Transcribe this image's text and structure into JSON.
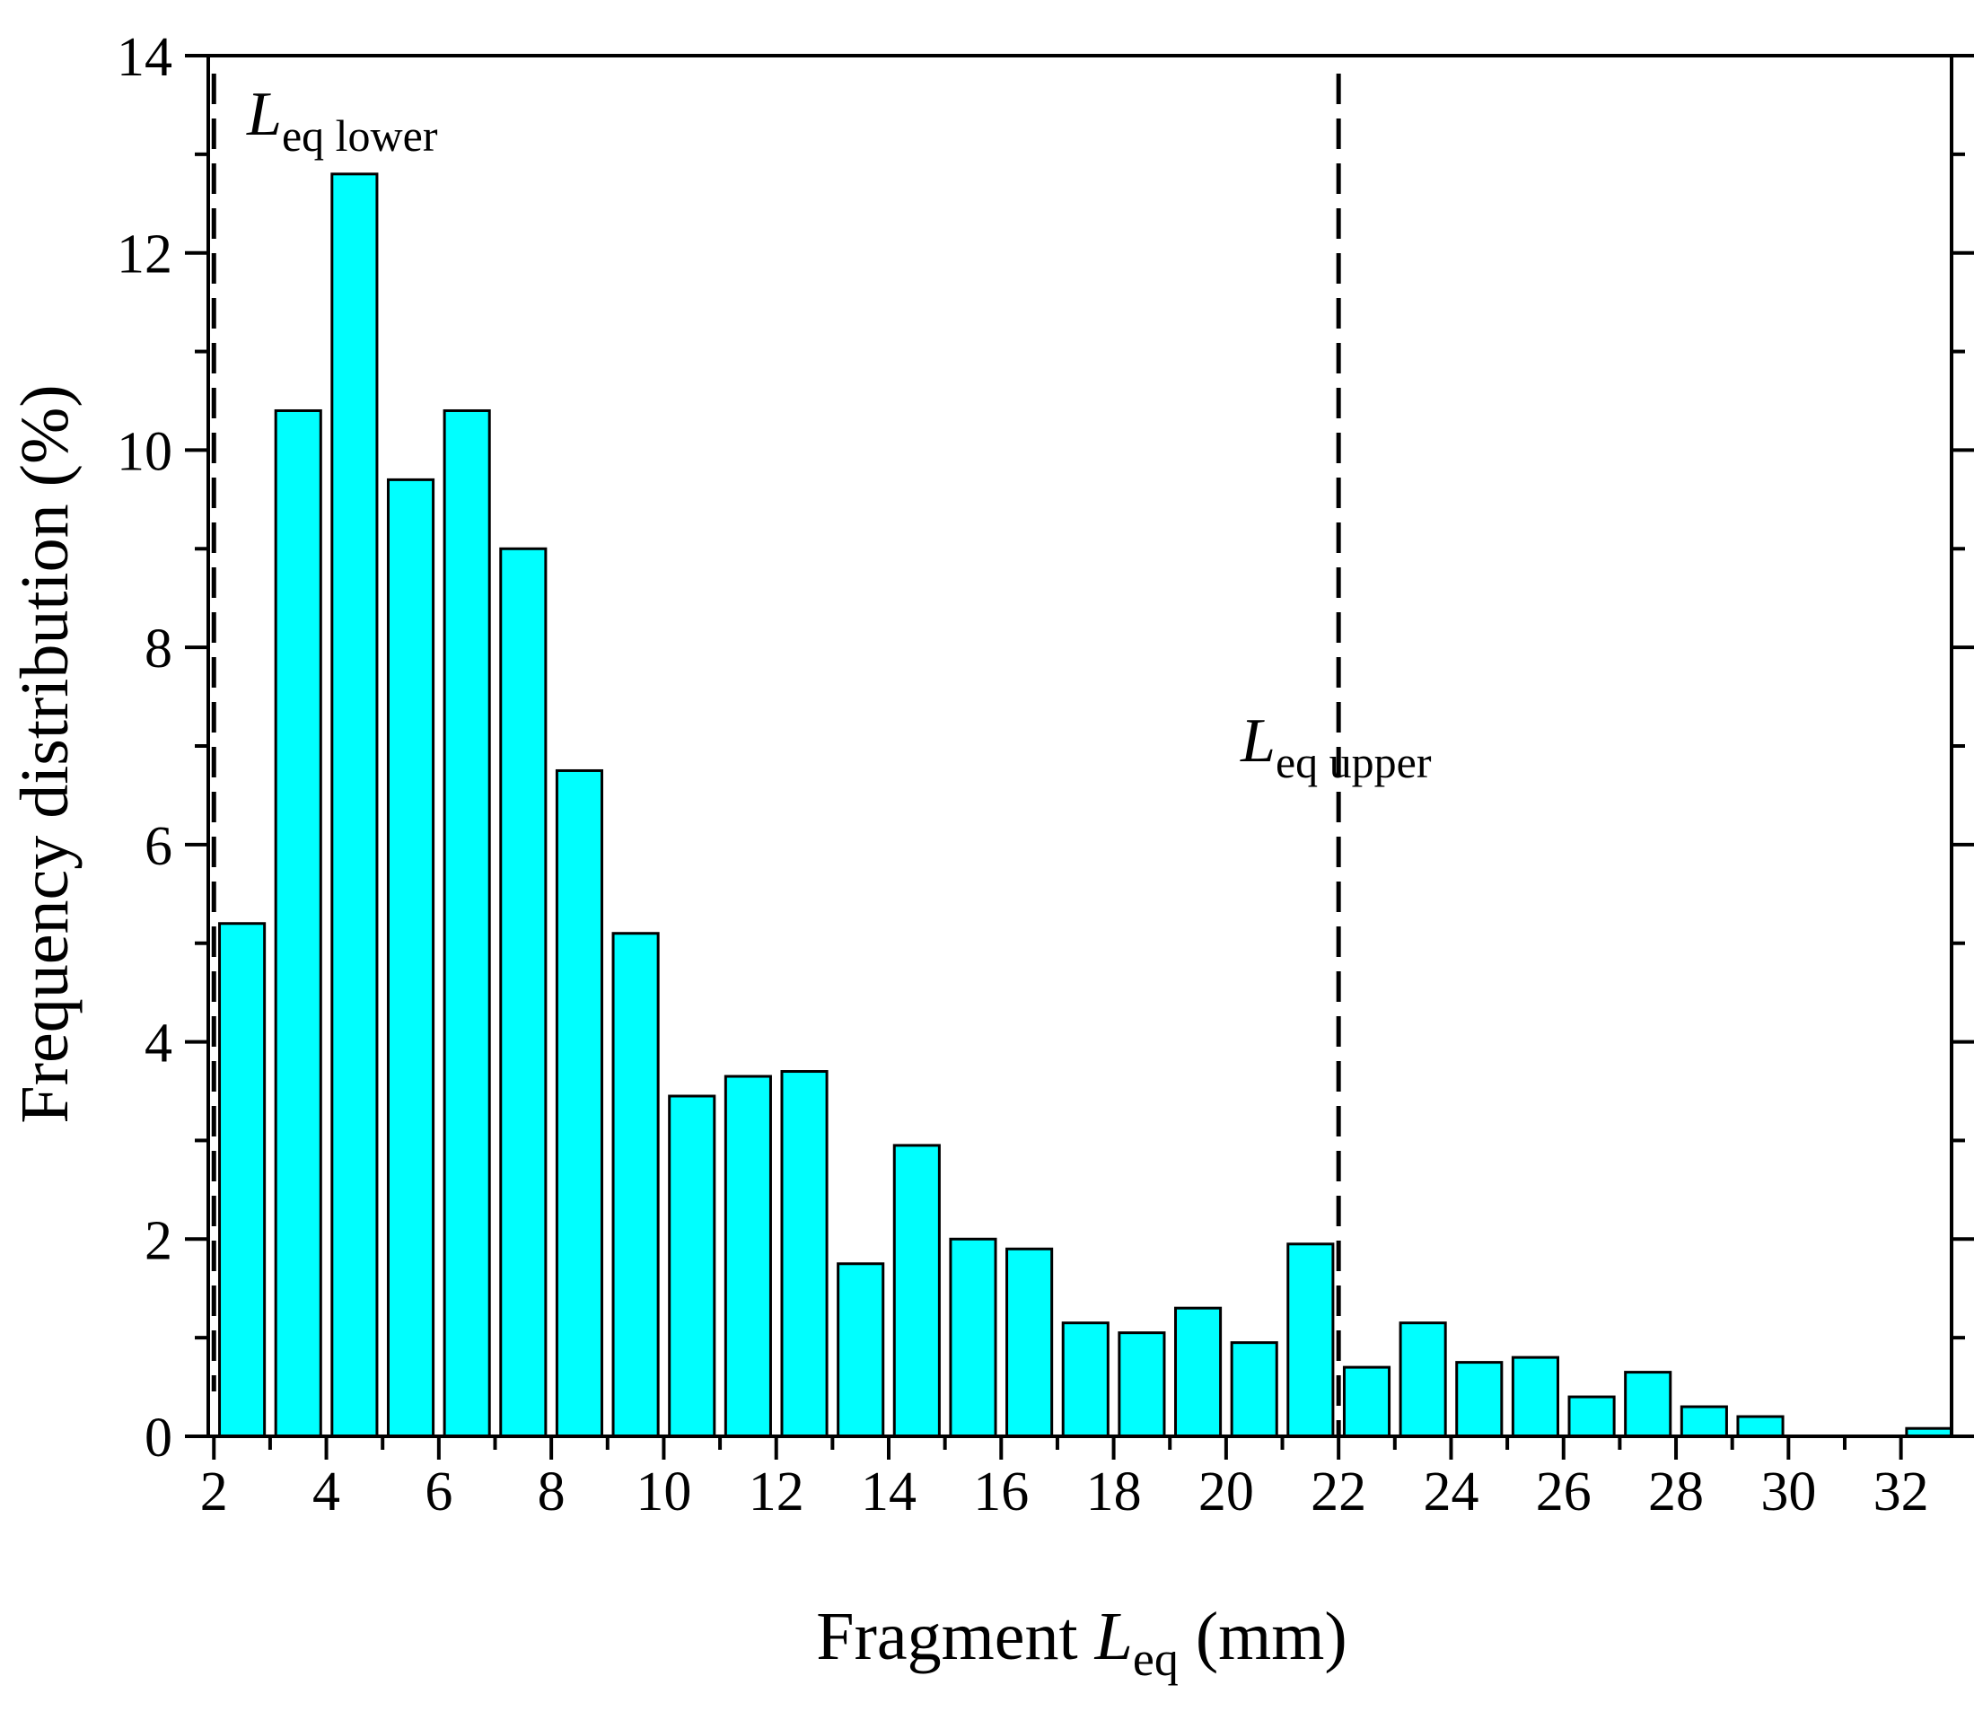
{
  "chart_data": {
    "type": "bar",
    "x": [
      2.5,
      3.5,
      4.5,
      5.5,
      6.5,
      7.5,
      8.5,
      9.5,
      10.5,
      11.5,
      12.5,
      13.5,
      14.5,
      15.5,
      16.5,
      17.5,
      18.5,
      19.5,
      20.5,
      21.5,
      22.5,
      23.5,
      24.5,
      25.5,
      26.5,
      27.5,
      28.5,
      29.5,
      32.5
    ],
    "values": [
      5.2,
      10.4,
      12.8,
      9.7,
      10.4,
      9.0,
      6.75,
      5.1,
      3.45,
      3.65,
      3.7,
      1.75,
      2.95,
      2.0,
      1.9,
      1.15,
      1.05,
      1.3,
      0.95,
      1.95,
      0.7,
      1.15,
      0.75,
      0.8,
      0.4,
      0.65,
      0.3,
      0.2,
      0.08
    ],
    "bin_width": 1,
    "bar_color": "#00ffff",
    "xlim": [
      1.9,
      32.9
    ],
    "ylim": [
      0,
      14
    ],
    "x_ticks": [
      "2",
      "4",
      "6",
      "8",
      "10",
      "12",
      "14",
      "16",
      "18",
      "20",
      "22",
      "24",
      "26",
      "28",
      "30",
      "32"
    ],
    "y_ticks": [
      "0",
      "2",
      "4",
      "6",
      "8",
      "10",
      "12",
      "14"
    ],
    "xlabel": {
      "prefix": "Fragment ",
      "var": "L",
      "sub": "eq",
      "suffix": " (mm)"
    },
    "ylabel": "Frequency distribution (%)",
    "reference_lines": [
      {
        "x": 2,
        "label_var": "L",
        "label_sub": "eq lower"
      },
      {
        "x": 22,
        "label_var": "L",
        "label_sub": "eq upper"
      }
    ]
  }
}
